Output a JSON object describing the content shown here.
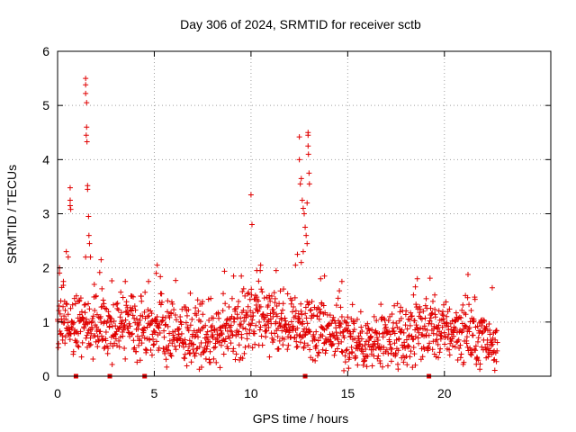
{
  "chart_data": {
    "type": "scatter",
    "title": "Day 306 of 2024, SRMTID for receiver sctb",
    "xlabel": "GPS time / hours",
    "ylabel": "SRMTID / TECUs",
    "xlim": [
      0,
      25.5
    ],
    "ylim": [
      0,
      6
    ],
    "x_ticks": [
      0,
      5,
      10,
      15,
      20
    ],
    "x_tick_labels": [
      "0",
      "5",
      "10",
      "15",
      "20"
    ],
    "y_ticks": [
      0,
      1,
      2,
      3,
      4,
      5,
      6
    ],
    "y_tick_labels": [
      "0",
      "1",
      "2",
      "3",
      "4",
      "5",
      "6"
    ],
    "grid": true,
    "marker": "+",
    "color": "#e00000",
    "data_end_hours": 22.75,
    "baseline_profile": [
      {
        "x": 0.0,
        "y": 0.95
      },
      {
        "x": 1.0,
        "y": 1.0
      },
      {
        "x": 2.0,
        "y": 1.05
      },
      {
        "x": 3.0,
        "y": 0.95
      },
      {
        "x": 4.0,
        "y": 0.9
      },
      {
        "x": 5.0,
        "y": 0.85
      },
      {
        "x": 6.0,
        "y": 0.8
      },
      {
        "x": 7.0,
        "y": 0.75
      },
      {
        "x": 8.0,
        "y": 0.75
      },
      {
        "x": 9.0,
        "y": 0.85
      },
      {
        "x": 10.0,
        "y": 1.0
      },
      {
        "x": 11.0,
        "y": 1.0
      },
      {
        "x": 12.0,
        "y": 0.9
      },
      {
        "x": 13.0,
        "y": 1.0
      },
      {
        "x": 14.0,
        "y": 0.85
      },
      {
        "x": 15.0,
        "y": 0.7
      },
      {
        "x": 16.0,
        "y": 0.6
      },
      {
        "x": 17.0,
        "y": 0.6
      },
      {
        "x": 18.0,
        "y": 0.7
      },
      {
        "x": 19.0,
        "y": 0.8
      },
      {
        "x": 20.0,
        "y": 0.85
      },
      {
        "x": 21.0,
        "y": 0.85
      },
      {
        "x": 22.0,
        "y": 0.7
      },
      {
        "x": 22.75,
        "y": 0.65
      }
    ],
    "peaks": [
      {
        "x": 0.1,
        "y": 2.0
      },
      {
        "x": 0.3,
        "y": 1.75
      },
      {
        "x": 0.45,
        "y": 2.3
      },
      {
        "x": 0.55,
        "y": 2.2
      },
      {
        "x": 0.65,
        "y": 3.48
      },
      {
        "x": 0.65,
        "y": 3.25
      },
      {
        "x": 0.65,
        "y": 3.15
      },
      {
        "x": 0.68,
        "y": 3.08
      },
      {
        "x": 1.45,
        "y": 5.5
      },
      {
        "x": 1.45,
        "y": 5.38
      },
      {
        "x": 1.45,
        "y": 5.22
      },
      {
        "x": 1.5,
        "y": 5.05
      },
      {
        "x": 1.5,
        "y": 4.6
      },
      {
        "x": 1.48,
        "y": 4.45
      },
      {
        "x": 1.52,
        "y": 4.33
      },
      {
        "x": 1.55,
        "y": 3.52
      },
      {
        "x": 1.55,
        "y": 3.45
      },
      {
        "x": 1.6,
        "y": 2.95
      },
      {
        "x": 1.62,
        "y": 2.6
      },
      {
        "x": 1.65,
        "y": 2.45
      },
      {
        "x": 1.7,
        "y": 2.2
      },
      {
        "x": 1.45,
        "y": 2.2
      },
      {
        "x": 2.25,
        "y": 2.15
      },
      {
        "x": 3.5,
        "y": 1.75
      },
      {
        "x": 5.15,
        "y": 2.05
      },
      {
        "x": 5.1,
        "y": 1.9
      },
      {
        "x": 9.1,
        "y": 1.85
      },
      {
        "x": 9.5,
        "y": 1.85
      },
      {
        "x": 10.0,
        "y": 3.35
      },
      {
        "x": 10.05,
        "y": 2.8
      },
      {
        "x": 10.3,
        "y": 1.95
      },
      {
        "x": 10.5,
        "y": 2.05
      },
      {
        "x": 11.3,
        "y": 1.95
      },
      {
        "x": 12.3,
        "y": 2.05
      },
      {
        "x": 12.4,
        "y": 2.25
      },
      {
        "x": 12.5,
        "y": 4.42
      },
      {
        "x": 12.5,
        "y": 4.0
      },
      {
        "x": 12.55,
        "y": 3.55
      },
      {
        "x": 12.6,
        "y": 3.65
      },
      {
        "x": 12.65,
        "y": 3.25
      },
      {
        "x": 12.7,
        "y": 3.1
      },
      {
        "x": 12.75,
        "y": 3.0
      },
      {
        "x": 12.8,
        "y": 2.75
      },
      {
        "x": 12.85,
        "y": 2.6
      },
      {
        "x": 12.9,
        "y": 3.2
      },
      {
        "x": 12.95,
        "y": 4.5
      },
      {
        "x": 12.95,
        "y": 4.45
      },
      {
        "x": 12.95,
        "y": 4.25
      },
      {
        "x": 12.97,
        "y": 4.1
      },
      {
        "x": 13.0,
        "y": 3.75
      },
      {
        "x": 13.02,
        "y": 3.55
      },
      {
        "x": 12.9,
        "y": 2.45
      },
      {
        "x": 12.6,
        "y": 2.1
      },
      {
        "x": 12.7,
        "y": 2.3
      },
      {
        "x": 13.6,
        "y": 1.8
      },
      {
        "x": 13.8,
        "y": 1.85
      },
      {
        "x": 14.7,
        "y": 1.75
      },
      {
        "x": 18.4,
        "y": 1.5
      },
      {
        "x": 18.5,
        "y": 1.65
      },
      {
        "x": 18.6,
        "y": 1.8
      },
      {
        "x": 19.5,
        "y": 1.5
      },
      {
        "x": 21.2,
        "y": 1.45
      }
    ],
    "zero_markers_hours": [
      0.95,
      2.7,
      4.5,
      12.8,
      19.2
    ]
  }
}
